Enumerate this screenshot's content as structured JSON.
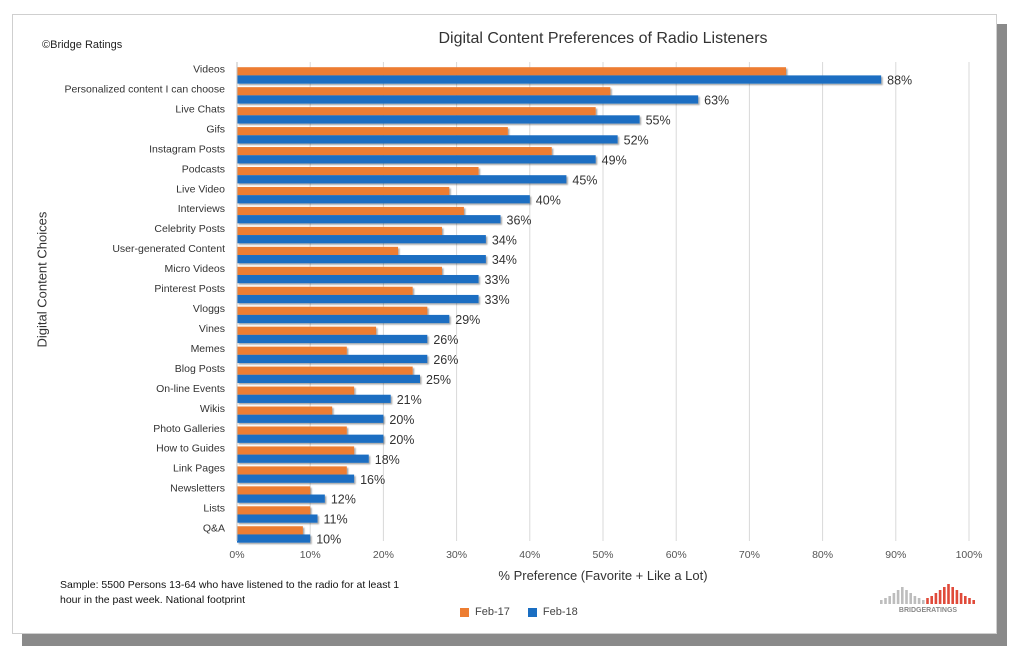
{
  "source_text": "©Bridge Ratings",
  "note_text": "Sample: 5500 Persons 13-64 who have listened to the radio for at least 1 hour in the past week. National footprint",
  "brand_text": "BRIDGERATINGS",
  "chart_data": {
    "type": "bar",
    "orientation": "horizontal",
    "title": "Digital Content Preferences of Radio Listeners",
    "xlabel": "% Preference (Favorite + Like a Lot)",
    "ylabel": "Digital Content Choices",
    "xlim": [
      0,
      100
    ],
    "x_ticks": [
      "0%",
      "10%",
      "20%",
      "30%",
      "40%",
      "50%",
      "60%",
      "70%",
      "80%",
      "90%",
      "100%"
    ],
    "grid": "vertical",
    "legend": "bottom",
    "categories": [
      "Videos",
      "Personalized content I can choose",
      "Live Chats",
      "Gifs",
      "Instagram Posts",
      "Podcasts",
      "Live Video",
      "Interviews",
      "Celebrity Posts",
      "User-generated Content",
      "Micro Videos",
      "Pinterest Posts",
      "Vloggs",
      "Vines",
      "Memes",
      "Blog Posts",
      "On-line Events",
      "Wikis",
      "Photo Galleries",
      "How to Guides",
      "Link Pages",
      "Newsletters",
      "Lists",
      "Q&A"
    ],
    "series": [
      {
        "name": "Feb-17",
        "color": "#ED7D31",
        "values": [
          75,
          51,
          49,
          37,
          43,
          33,
          29,
          31,
          28,
          22,
          28,
          24,
          26,
          19,
          15,
          24,
          16,
          13,
          15,
          16,
          15,
          10,
          10,
          9
        ]
      },
      {
        "name": "Feb-18",
        "color": "#1A6EC2",
        "values": [
          88,
          63,
          55,
          52,
          49,
          45,
          40,
          36,
          34,
          34,
          33,
          33,
          29,
          26,
          26,
          25,
          21,
          20,
          20,
          18,
          16,
          12,
          11,
          10
        ]
      }
    ],
    "data_labels": [
      "88%",
      "63%",
      "55%",
      "52%",
      "49%",
      "45%",
      "40%",
      "36%",
      "34%",
      "34%",
      "33%",
      "33%",
      "29%",
      "26%",
      "26%",
      "25%",
      "21%",
      "20%",
      "20%",
      "18%",
      "16%",
      "12%",
      "11%",
      "10%"
    ]
  }
}
